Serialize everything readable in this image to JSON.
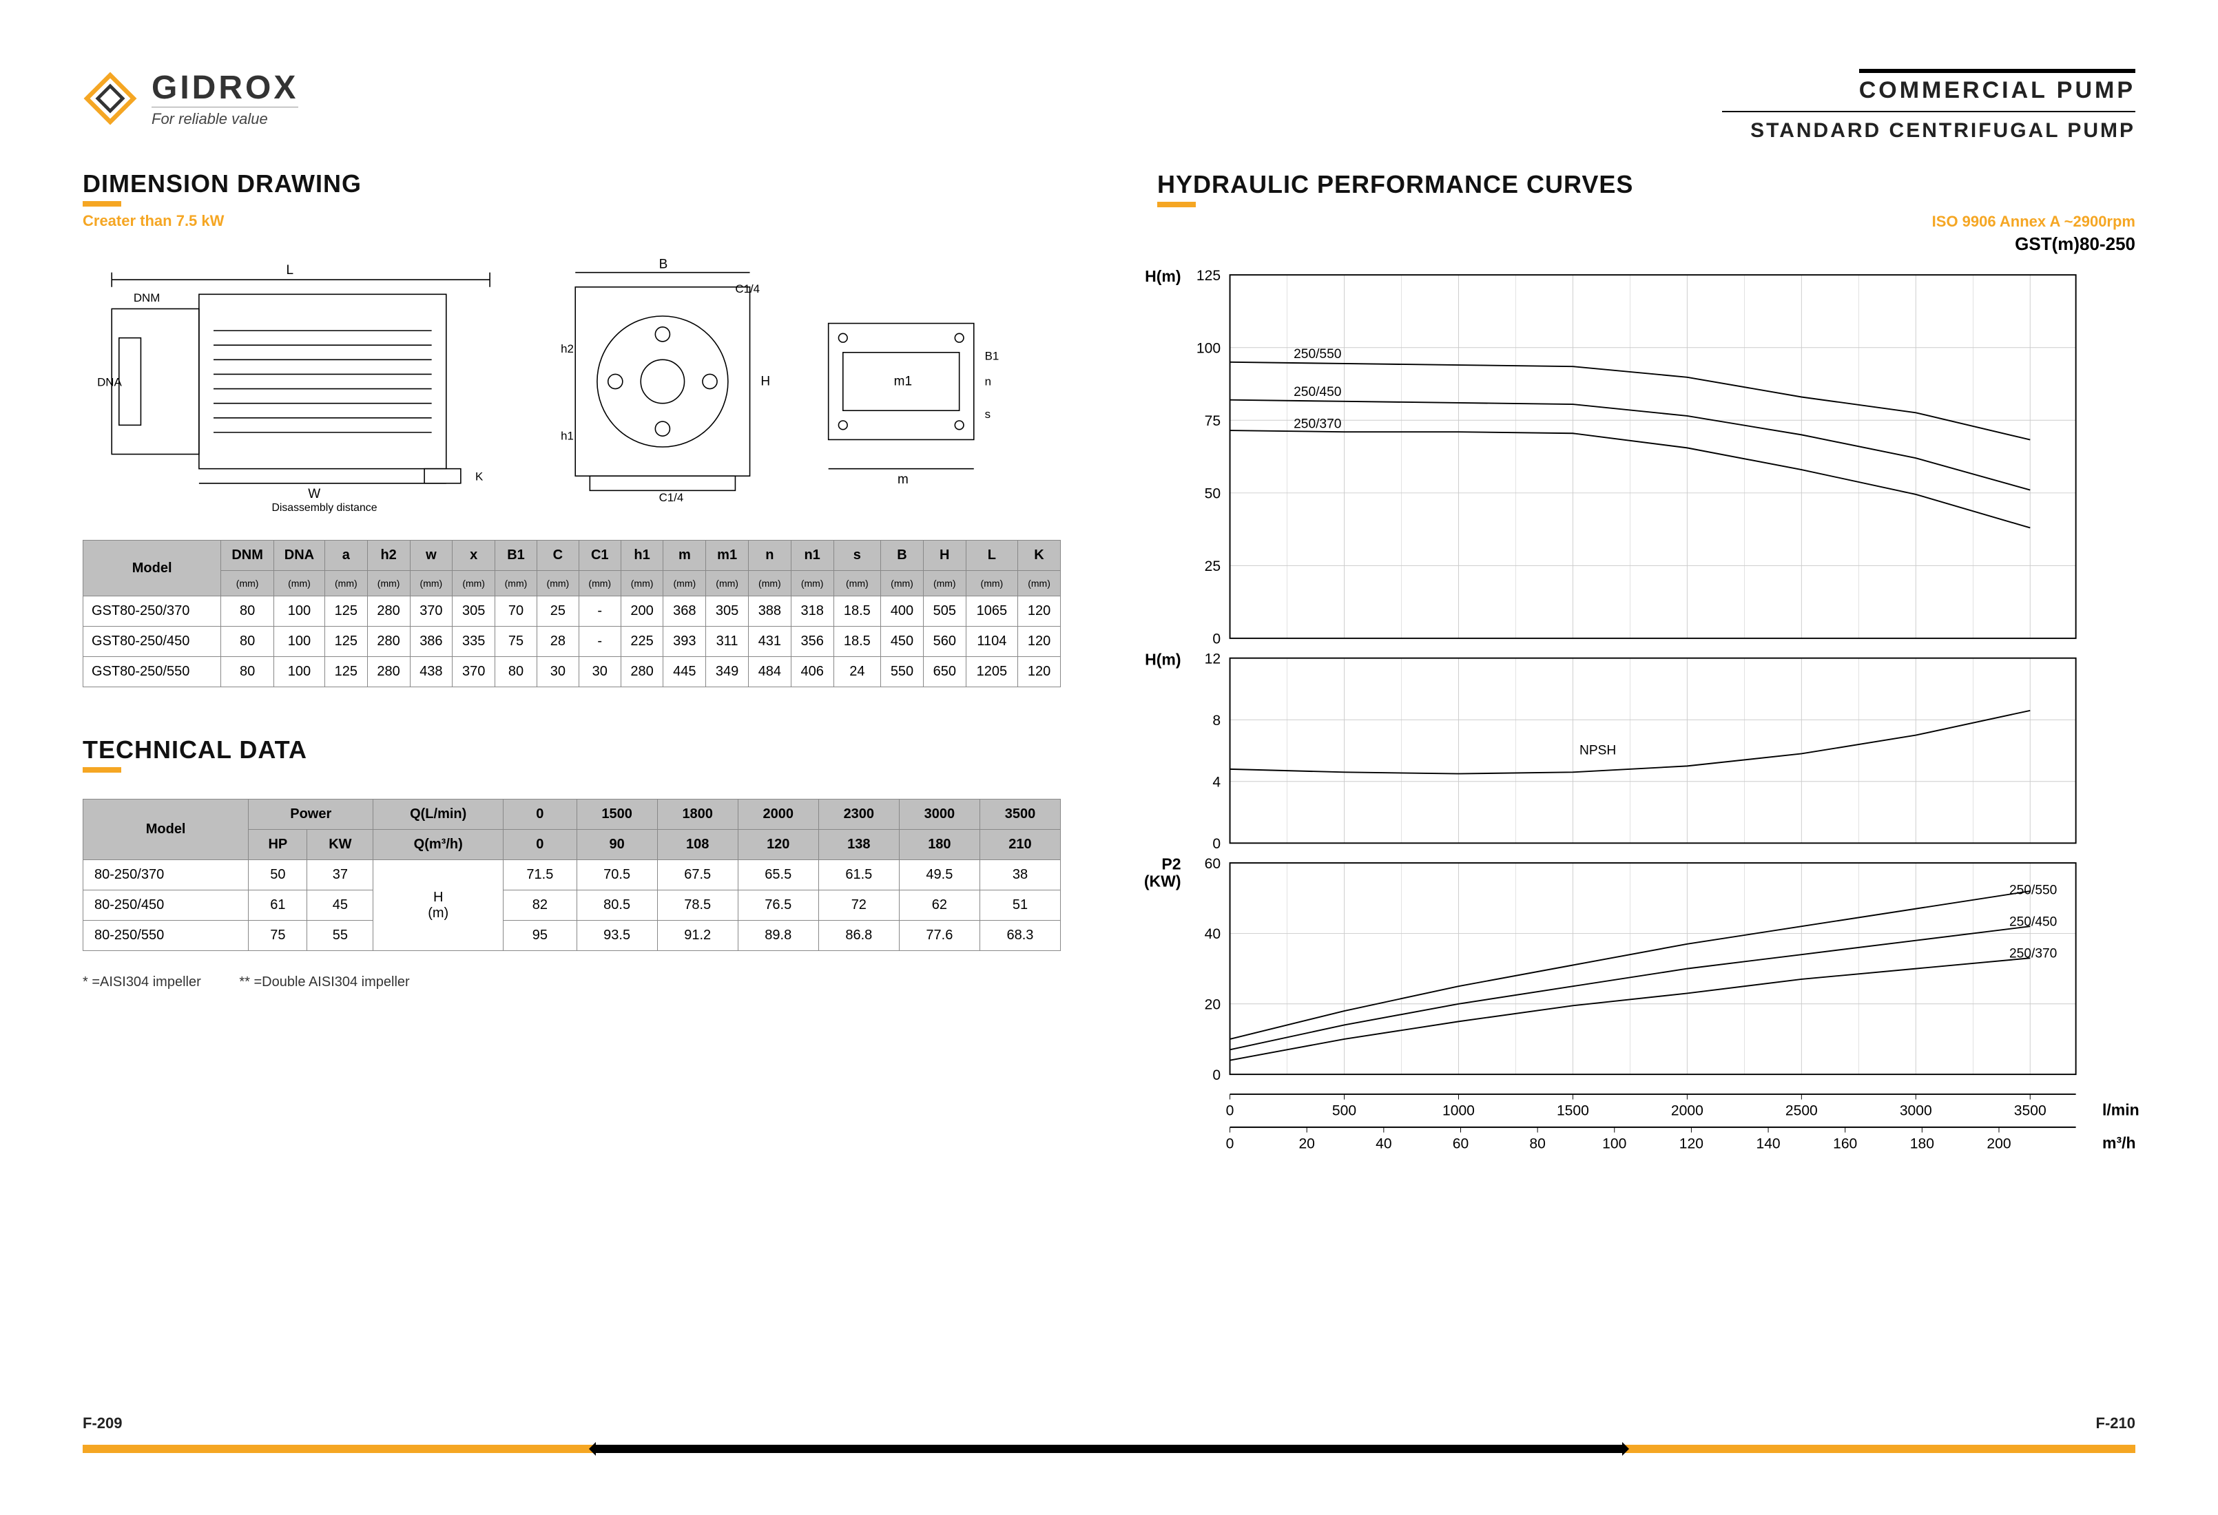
{
  "brand": {
    "name": "GIDROX",
    "tagline": "For reliable value"
  },
  "header": {
    "line1": "COMMERCIAL  PUMP",
    "line2": "STANDARD  CENTRIFUGAL  PUMP"
  },
  "left": {
    "section1_title": "DIMENSION DRAWING",
    "section1_subtitle": "Creater than 7.5 kW",
    "section2_title": "TECHNICAL DATA",
    "footnote1": "* =AISI304 impeller",
    "footnote2": "** =Double AISI304 impeller",
    "page_num": "F-209"
  },
  "right": {
    "section_title": "HYDRAULIC PERFORMANCE CURVES",
    "iso": "ISO 9906   Annex A   ~2900rpm",
    "model_label": "GST(m)80-250",
    "page_num": "F-210"
  },
  "dim_table": {
    "col_model": "Model",
    "cols": [
      "DNM",
      "DNA",
      "a",
      "h2",
      "w",
      "x",
      "B1",
      "C",
      "C1",
      "h1",
      "m",
      "m1",
      "n",
      "n1",
      "s",
      "B",
      "H",
      "L",
      "K"
    ],
    "unit": "(mm)",
    "rows": [
      {
        "model": "GST80-250/370",
        "vals": [
          "80",
          "100",
          "125",
          "280",
          "370",
          "305",
          "70",
          "25",
          "-",
          "200",
          "368",
          "305",
          "388",
          "318",
          "18.5",
          "400",
          "505",
          "1065",
          "120"
        ]
      },
      {
        "model": "GST80-250/450",
        "vals": [
          "80",
          "100",
          "125",
          "280",
          "386",
          "335",
          "75",
          "28",
          "-",
          "225",
          "393",
          "311",
          "431",
          "356",
          "18.5",
          "450",
          "560",
          "1104",
          "120"
        ]
      },
      {
        "model": "GST80-250/550",
        "vals": [
          "80",
          "100",
          "125",
          "280",
          "438",
          "370",
          "80",
          "30",
          "30",
          "280",
          "445",
          "349",
          "484",
          "406",
          "24",
          "550",
          "650",
          "1205",
          "120"
        ]
      }
    ]
  },
  "tech_table": {
    "col_model": "Model",
    "power": "Power",
    "hp": "HP",
    "kw": "KW",
    "qlmin": "Q(L/min)",
    "qm3h": "Q(m³/h)",
    "hm": "H\n(m)",
    "flow_lmin": [
      "0",
      "1500",
      "1800",
      "2000",
      "2300",
      "3000",
      "3500"
    ],
    "flow_m3h": [
      "0",
      "90",
      "108",
      "120",
      "138",
      "180",
      "210"
    ],
    "rows": [
      {
        "model": "80-250/370",
        "hp": "50",
        "kw": "37",
        "h": [
          "71.5",
          "70.5",
          "67.5",
          "65.5",
          "61.5",
          "49.5",
          "38"
        ]
      },
      {
        "model": "80-250/450",
        "hp": "61",
        "kw": "45",
        "h": [
          "82",
          "80.5",
          "78.5",
          "76.5",
          "72",
          "62",
          "51"
        ]
      },
      {
        "model": "80-250/550",
        "hp": "75",
        "kw": "55",
        "h": [
          "95",
          "93.5",
          "91.2",
          "89.8",
          "86.8",
          "77.6",
          "68.3"
        ]
      }
    ]
  },
  "charts": {
    "bg": "#ffffff",
    "grid_color": "#cccccc",
    "axis_color": "#000000",
    "line_color": "#000000",
    "line_width": 2,
    "font_axis": 22,
    "font_label": 24,
    "x": {
      "lmin": {
        "label": "l/min",
        "min": 0,
        "max": 3700,
        "ticks": [
          0,
          500,
          1000,
          1500,
          2000,
          2500,
          3000,
          3500
        ]
      },
      "m3h": {
        "label": "m³/h",
        "min": 0,
        "max": 220,
        "ticks": [
          0,
          20,
          40,
          60,
          80,
          100,
          120,
          140,
          160,
          180,
          200
        ]
      }
    },
    "head": {
      "ylabel": "H(m)",
      "ymin": 0,
      "ymax": 125,
      "yticks": [
        0,
        25,
        50,
        75,
        100,
        125
      ],
      "series": [
        {
          "label": "250/550",
          "lx": 250,
          "ly": 95,
          "pts": [
            [
              0,
              95
            ],
            [
              500,
              94.5
            ],
            [
              1000,
              94
            ],
            [
              1500,
              93.5
            ],
            [
              2000,
              89.8
            ],
            [
              2500,
              83
            ],
            [
              3000,
              77.6
            ],
            [
              3500,
              68.3
            ]
          ]
        },
        {
          "label": "250/450",
          "lx": 250,
          "ly": 82,
          "pts": [
            [
              0,
              82
            ],
            [
              500,
              81.5
            ],
            [
              1000,
              81
            ],
            [
              1500,
              80.5
            ],
            [
              2000,
              76.5
            ],
            [
              2500,
              70
            ],
            [
              3000,
              62
            ],
            [
              3500,
              51
            ]
          ]
        },
        {
          "label": "250/370",
          "lx": 250,
          "ly": 71,
          "pts": [
            [
              0,
              71.5
            ],
            [
              500,
              71
            ],
            [
              1000,
              71
            ],
            [
              1500,
              70.5
            ],
            [
              2000,
              65.5
            ],
            [
              2500,
              58
            ],
            [
              3000,
              49.5
            ],
            [
              3500,
              38
            ]
          ]
        }
      ]
    },
    "npsh": {
      "ylabel": "H(m)",
      "ymin": 0,
      "ymax": 12,
      "yticks": [
        0,
        4,
        8,
        12
      ],
      "label": "NPSH",
      "lx": 1500,
      "ly": 5.5,
      "pts": [
        [
          0,
          4.8
        ],
        [
          500,
          4.6
        ],
        [
          1000,
          4.5
        ],
        [
          1500,
          4.6
        ],
        [
          2000,
          5.0
        ],
        [
          2500,
          5.8
        ],
        [
          3000,
          7.0
        ],
        [
          3500,
          8.6
        ]
      ]
    },
    "power": {
      "ylabel": "P2\n(KW)",
      "ymin": 0,
      "ymax": 60,
      "yticks": [
        0,
        20,
        40,
        60
      ],
      "series": [
        {
          "label": "250/550",
          "lx": 3380,
          "ly": 50,
          "pts": [
            [
              0,
              10
            ],
            [
              500,
              18
            ],
            [
              1000,
              25
            ],
            [
              1500,
              31
            ],
            [
              2000,
              37
            ],
            [
              2500,
              42
            ],
            [
              3000,
              47
            ],
            [
              3500,
              52
            ]
          ]
        },
        {
          "label": "250/450",
          "lx": 3380,
          "ly": 41,
          "pts": [
            [
              0,
              7
            ],
            [
              500,
              14
            ],
            [
              1000,
              20
            ],
            [
              1500,
              25
            ],
            [
              2000,
              30
            ],
            [
              2500,
              34
            ],
            [
              3000,
              38
            ],
            [
              3500,
              42
            ]
          ]
        },
        {
          "label": "250/370",
          "lx": 3380,
          "ly": 32,
          "pts": [
            [
              0,
              4
            ],
            [
              500,
              10
            ],
            [
              1000,
              15
            ],
            [
              1500,
              19.5
            ],
            [
              2000,
              23
            ],
            [
              2500,
              27
            ],
            [
              3000,
              30
            ],
            [
              3500,
              33
            ]
          ]
        }
      ]
    }
  }
}
